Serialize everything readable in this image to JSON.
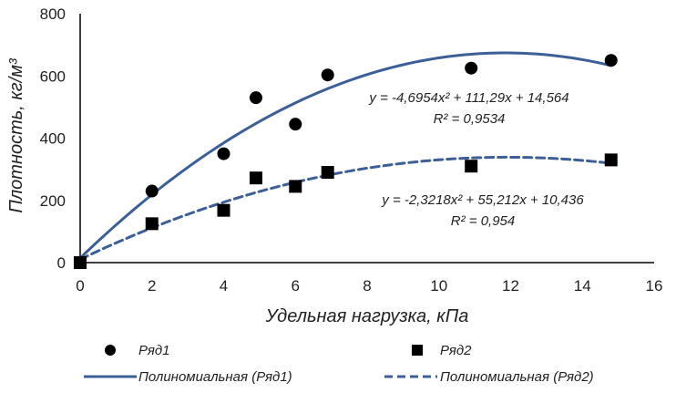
{
  "chart_data": {
    "type": "scatter",
    "xlabel": "Удельная нагрузка, кПа",
    "ylabel": "Плотность, кг/м³",
    "xlim": [
      0,
      16
    ],
    "ylim": [
      0,
      800
    ],
    "x_ticks": [
      0,
      2,
      4,
      6,
      8,
      10,
      12,
      14,
      16
    ],
    "y_ticks": [
      0,
      200,
      400,
      600,
      800
    ],
    "grid": false,
    "series": [
      {
        "name": "Ряд1",
        "marker": "circle",
        "color": "#000000",
        "points": [
          {
            "x": 0,
            "y": 0
          },
          {
            "x": 2,
            "y": 230
          },
          {
            "x": 4,
            "y": 350
          },
          {
            "x": 4.9,
            "y": 530
          },
          {
            "x": 6,
            "y": 445
          },
          {
            "x": 6.9,
            "y": 603
          },
          {
            "x": 10.9,
            "y": 625
          },
          {
            "x": 14.8,
            "y": 650
          }
        ]
      },
      {
        "name": "Ряд2",
        "marker": "square",
        "color": "#000000",
        "points": [
          {
            "x": 0,
            "y": 0
          },
          {
            "x": 2,
            "y": 125
          },
          {
            "x": 4,
            "y": 168
          },
          {
            "x": 4.9,
            "y": 272
          },
          {
            "x": 6,
            "y": 245
          },
          {
            "x": 6.9,
            "y": 290
          },
          {
            "x": 10.9,
            "y": 310
          },
          {
            "x": 14.8,
            "y": 330
          }
        ]
      }
    ],
    "trendlines": [
      {
        "name": "Полиномиальная (Ряд1)",
        "style": "solid",
        "color": "#3d5f98",
        "coefficients": [
          -4.6954,
          111.29,
          14.564
        ],
        "x_range": [
          0,
          14.8
        ],
        "equation_text": "y = -4,6954x² + 111,29x + 14,564",
        "r2_text": "R² = 0,9534"
      },
      {
        "name": "Полиномиальная (Ряд2)",
        "style": "dashed",
        "color": "#3d5f98",
        "coefficients": [
          -2.3218,
          55.212,
          10.436
        ],
        "x_range": [
          0,
          14.8
        ],
        "equation_text": "y = -2,3218x² + 55,212x + 10,436",
        "r2_text": "R² = 0,954"
      }
    ],
    "legend": {
      "placement": "bottom",
      "entries": [
        {
          "label": "Ряд1",
          "kind": "marker-circle"
        },
        {
          "label": "Ряд2",
          "kind": "marker-square"
        },
        {
          "label": "Полиномиальная (Ряд1)",
          "kind": "line-solid"
        },
        {
          "label": "Полиномиальная (Ряд2)",
          "kind": "line-dashed"
        }
      ]
    }
  }
}
